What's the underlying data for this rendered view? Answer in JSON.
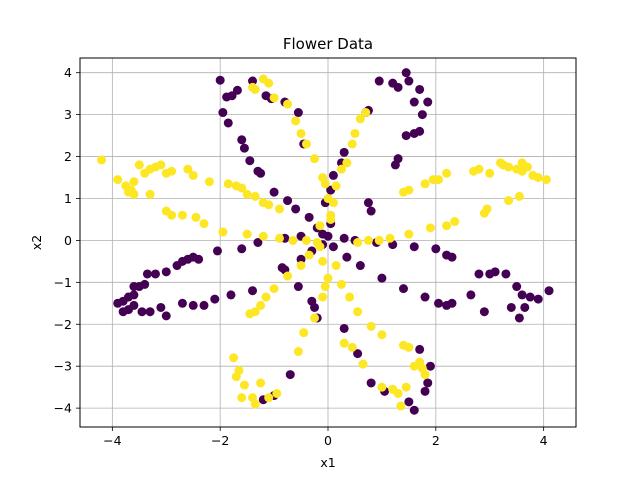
{
  "chart_data": {
    "type": "scatter",
    "title": "Flower Data",
    "xlabel": "x1",
    "ylabel": "x2",
    "xlim": [
      -4.6,
      4.6
    ],
    "ylim": [
      -4.45,
      4.35
    ],
    "xticks": [
      -4,
      -2,
      0,
      2,
      4
    ],
    "yticks": [
      -4,
      -3,
      -2,
      -1,
      0,
      1,
      2,
      3,
      4
    ],
    "grid": true,
    "legend": "none",
    "colors": {
      "class_0": "#440154",
      "class_1": "#fde725"
    },
    "series": [
      {
        "class": 0,
        "color": "#440154",
        "points": [
          [
            -2.0,
            3.82
          ],
          [
            -1.88,
            3.42
          ],
          [
            -1.78,
            3.45
          ],
          [
            -1.68,
            3.58
          ],
          [
            -1.4,
            3.8
          ],
          [
            -1.15,
            3.45
          ],
          [
            -1.05,
            3.38
          ],
          [
            -0.8,
            3.3
          ],
          [
            -0.55,
            3.05
          ],
          [
            -1.95,
            3.05
          ],
          [
            -1.85,
            2.8
          ],
          [
            -1.6,
            2.4
          ],
          [
            -1.55,
            2.2
          ],
          [
            -1.45,
            1.9
          ],
          [
            -1.3,
            1.65
          ],
          [
            -1.25,
            1.6
          ],
          [
            -1.0,
            1.15
          ],
          [
            -0.75,
            0.95
          ],
          [
            -0.6,
            0.75
          ],
          [
            -0.35,
            0.55
          ],
          [
            -0.2,
            0.3
          ],
          [
            -0.1,
            0.15
          ],
          [
            -0.45,
            2.3
          ],
          [
            0.95,
            3.8
          ],
          [
            1.2,
            3.75
          ],
          [
            1.3,
            3.65
          ],
          [
            1.45,
            4.0
          ],
          [
            1.5,
            3.8
          ],
          [
            1.7,
            3.6
          ],
          [
            1.6,
            3.3
          ],
          [
            1.85,
            3.3
          ],
          [
            1.75,
            3.0
          ],
          [
            1.7,
            2.6
          ],
          [
            1.6,
            2.55
          ],
          [
            1.45,
            2.5
          ],
          [
            1.3,
            1.95
          ],
          [
            1.25,
            1.8
          ],
          [
            0.75,
            3.1
          ],
          [
            0.7,
            3.05
          ],
          [
            0.3,
            2.1
          ],
          [
            0.25,
            1.85
          ],
          [
            0.1,
            1.55
          ],
          [
            0.05,
            1.2
          ],
          [
            -0.05,
            0.9
          ],
          [
            0.05,
            0.4
          ],
          [
            0.0,
            0.1
          ],
          [
            0.8,
            0.7
          ],
          [
            0.75,
            0.9
          ],
          [
            -3.9,
            -1.5
          ],
          [
            -3.8,
            -1.45
          ],
          [
            -3.7,
            -1.35
          ],
          [
            -3.6,
            -1.3
          ],
          [
            -3.8,
            -1.7
          ],
          [
            -3.7,
            -1.65
          ],
          [
            -3.6,
            -1.55
          ],
          [
            -3.6,
            -1.1
          ],
          [
            -3.5,
            -1.1
          ],
          [
            -3.4,
            -1.05
          ],
          [
            -3.35,
            -0.8
          ],
          [
            -3.2,
            -0.8
          ],
          [
            -3.0,
            -0.75
          ],
          [
            -2.8,
            -0.6
          ],
          [
            -2.7,
            -0.5
          ],
          [
            -2.6,
            -0.45
          ],
          [
            -2.5,
            -0.4
          ],
          [
            -2.4,
            -0.45
          ],
          [
            -2.05,
            -0.25
          ],
          [
            -1.6,
            -0.2
          ],
          [
            -1.3,
            -0.05
          ],
          [
            -0.8,
            0.05
          ],
          [
            -0.5,
            0.1
          ],
          [
            -2.7,
            -1.5
          ],
          [
            -2.5,
            -1.55
          ],
          [
            -2.3,
            -1.55
          ],
          [
            -3.1,
            -1.6
          ],
          [
            -3.0,
            -1.8
          ],
          [
            -2.1,
            -1.4
          ],
          [
            -1.8,
            -1.3
          ],
          [
            -1.4,
            -1.2
          ],
          [
            -0.85,
            -0.65
          ],
          [
            -0.5,
            -0.45
          ],
          [
            -0.3,
            -0.25
          ],
          [
            -0.1,
            -0.1
          ],
          [
            -3.45,
            -1.7
          ],
          [
            -3.3,
            -1.7
          ],
          [
            2.8,
            -0.8
          ],
          [
            3.0,
            -0.8
          ],
          [
            3.1,
            -0.75
          ],
          [
            3.3,
            -0.8
          ],
          [
            3.5,
            -1.1
          ],
          [
            3.6,
            -1.3
          ],
          [
            3.75,
            -1.35
          ],
          [
            3.9,
            -1.4
          ],
          [
            4.1,
            -1.2
          ],
          [
            3.4,
            -1.6
          ],
          [
            3.55,
            -1.85
          ],
          [
            3.65,
            -1.6
          ],
          [
            2.2,
            -0.35
          ],
          [
            2.3,
            -0.4
          ],
          [
            2.0,
            -0.2
          ],
          [
            1.6,
            -0.15
          ],
          [
            1.2,
            -0.1
          ],
          [
            0.9,
            -0.05
          ],
          [
            0.5,
            0.0
          ],
          [
            0.3,
            0.05
          ],
          [
            1.8,
            -1.35
          ],
          [
            2.05,
            -1.5
          ],
          [
            2.2,
            -1.55
          ],
          [
            2.3,
            -1.5
          ],
          [
            2.65,
            -1.3
          ],
          [
            2.9,
            -1.7
          ],
          [
            1.4,
            -1.15
          ],
          [
            1.0,
            -0.9
          ],
          [
            0.6,
            -0.6
          ],
          [
            0.35,
            -0.4
          ],
          [
            0.1,
            -0.15
          ],
          [
            -0.2,
            -1.85
          ],
          [
            -0.25,
            -1.6
          ],
          [
            -0.3,
            -1.45
          ],
          [
            -0.55,
            -1.1
          ],
          [
            -0.8,
            -0.7
          ],
          [
            -0.7,
            -3.2
          ],
          [
            -1.0,
            -3.7
          ],
          [
            -1.2,
            -3.8
          ],
          [
            0.3,
            -2.1
          ],
          [
            0.55,
            -2.7
          ],
          [
            0.8,
            -3.4
          ],
          [
            1.05,
            -3.6
          ],
          [
            1.5,
            -3.85
          ],
          [
            1.6,
            -4.05
          ],
          [
            1.8,
            -3.6
          ],
          [
            1.85,
            -3.4
          ],
          [
            1.9,
            -3.0
          ],
          [
            1.7,
            -2.6
          ]
        ]
      },
      {
        "class": 1,
        "color": "#fde725",
        "points": [
          [
            -1.4,
            3.65
          ],
          [
            -1.2,
            3.85
          ],
          [
            -1.1,
            3.75
          ],
          [
            -1.35,
            3.6
          ],
          [
            -1.0,
            3.4
          ],
          [
            -0.75,
            3.25
          ],
          [
            -0.6,
            2.85
          ],
          [
            -0.5,
            2.55
          ],
          [
            -0.4,
            2.3
          ],
          [
            -0.25,
            1.95
          ],
          [
            -0.1,
            1.5
          ],
          [
            -0.05,
            1.35
          ],
          [
            0.0,
            1.0
          ],
          [
            0.05,
            0.6
          ],
          [
            -0.15,
            0.35
          ],
          [
            0.7,
            3.05
          ],
          [
            0.6,
            2.9
          ],
          [
            0.5,
            2.55
          ],
          [
            0.45,
            2.3
          ],
          [
            0.35,
            1.85
          ],
          [
            0.25,
            1.7
          ],
          [
            0.15,
            1.3
          ],
          [
            0.1,
            0.9
          ],
          [
            0.05,
            0.5
          ],
          [
            -4.2,
            1.92
          ],
          [
            -3.9,
            1.45
          ],
          [
            -3.75,
            1.3
          ],
          [
            -3.65,
            1.2
          ],
          [
            -3.6,
            1.4
          ],
          [
            -3.5,
            1.8
          ],
          [
            -3.4,
            1.6
          ],
          [
            -3.3,
            1.7
          ],
          [
            -3.2,
            1.75
          ],
          [
            -3.1,
            1.8
          ],
          [
            -3.0,
            1.6
          ],
          [
            -2.9,
            1.65
          ],
          [
            -2.6,
            1.7
          ],
          [
            -2.5,
            1.55
          ],
          [
            -2.2,
            1.4
          ],
          [
            -1.85,
            1.35
          ],
          [
            -1.7,
            1.3
          ],
          [
            -1.6,
            1.25
          ],
          [
            -1.5,
            1.1
          ],
          [
            -1.35,
            1.05
          ],
          [
            -1.2,
            0.9
          ],
          [
            -1.1,
            0.85
          ],
          [
            -0.9,
            0.75
          ],
          [
            -3.3,
            1.1
          ],
          [
            -3.0,
            0.7
          ],
          [
            -2.9,
            0.6
          ],
          [
            -2.7,
            0.6
          ],
          [
            -2.45,
            0.55
          ],
          [
            -2.3,
            0.4
          ],
          [
            -1.95,
            0.2
          ],
          [
            -1.5,
            0.15
          ],
          [
            -1.2,
            0.1
          ],
          [
            -0.9,
            0.05
          ],
          [
            -0.65,
            0.0
          ],
          [
            -0.4,
            0.0
          ],
          [
            -0.2,
            -0.05
          ],
          [
            -3.7,
            1.15
          ],
          [
            -3.6,
            1.1
          ],
          [
            3.2,
            1.85
          ],
          [
            3.25,
            1.8
          ],
          [
            3.35,
            1.75
          ],
          [
            3.5,
            1.7
          ],
          [
            3.6,
            1.85
          ],
          [
            3.7,
            1.75
          ],
          [
            3.6,
            1.65
          ],
          [
            3.8,
            1.55
          ],
          [
            3.9,
            1.5
          ],
          [
            4.05,
            1.45
          ],
          [
            3.0,
            1.6
          ],
          [
            2.8,
            1.7
          ],
          [
            2.7,
            1.65
          ],
          [
            2.2,
            1.6
          ],
          [
            2.05,
            1.45
          ],
          [
            1.95,
            1.45
          ],
          [
            1.8,
            1.35
          ],
          [
            1.5,
            1.2
          ],
          [
            1.4,
            1.15
          ],
          [
            3.55,
            1.05
          ],
          [
            3.35,
            0.95
          ],
          [
            2.95,
            0.75
          ],
          [
            2.9,
            0.65
          ],
          [
            2.35,
            0.45
          ],
          [
            2.2,
            0.35
          ],
          [
            1.9,
            0.3
          ],
          [
            1.5,
            0.15
          ],
          [
            1.15,
            0.05
          ],
          [
            0.95,
            0.0
          ],
          [
            0.75,
            0.0
          ],
          [
            0.55,
            -0.05
          ],
          [
            -1.7,
            -3.25
          ],
          [
            -1.65,
            -3.1
          ],
          [
            -1.55,
            -3.45
          ],
          [
            -1.6,
            -3.75
          ],
          [
            -1.4,
            -3.75
          ],
          [
            -1.25,
            -3.4
          ],
          [
            -1.35,
            -3.9
          ],
          [
            -1.1,
            -3.75
          ],
          [
            -0.95,
            -3.65
          ],
          [
            -1.75,
            -2.8
          ],
          [
            -1.45,
            -1.75
          ],
          [
            -1.35,
            -1.7
          ],
          [
            -1.25,
            -1.55
          ],
          [
            -1.15,
            -1.35
          ],
          [
            -1.0,
            -1.15
          ],
          [
            -0.75,
            -0.85
          ],
          [
            -0.5,
            -0.6
          ],
          [
            -0.35,
            -0.35
          ],
          [
            -0.15,
            -0.15
          ],
          [
            -0.55,
            -2.65
          ],
          [
            -0.45,
            -2.2
          ],
          [
            -0.25,
            -1.85
          ],
          [
            -0.1,
            -1.35
          ],
          [
            -0.05,
            -1.1
          ],
          [
            0.0,
            -0.9
          ],
          [
            -0.1,
            -0.5
          ],
          [
            1.0,
            -3.5
          ],
          [
            1.2,
            -3.55
          ],
          [
            1.3,
            -3.65
          ],
          [
            1.35,
            -3.95
          ],
          [
            1.45,
            -3.5
          ],
          [
            1.6,
            -3.0
          ],
          [
            1.7,
            -2.9
          ],
          [
            1.75,
            -3.05
          ],
          [
            1.8,
            -3.2
          ],
          [
            1.5,
            -2.55
          ],
          [
            1.4,
            -2.5
          ],
          [
            1.0,
            -2.25
          ],
          [
            0.8,
            -2.05
          ],
          [
            0.55,
            -1.7
          ],
          [
            0.4,
            -1.35
          ],
          [
            0.25,
            -1.05
          ],
          [
            0.15,
            -0.6
          ],
          [
            0.3,
            -2.45
          ],
          [
            0.45,
            -2.55
          ],
          [
            0.65,
            -2.95
          ]
        ]
      }
    ]
  }
}
